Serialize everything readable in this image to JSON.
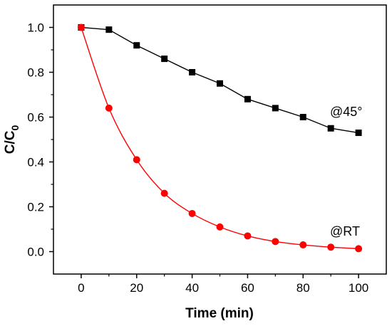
{
  "chart_data": {
    "type": "line",
    "title": "",
    "xlabel": "Time (min)",
    "ylabel": {
      "main": "C/C",
      "sub": "0"
    },
    "xlim": [
      -10,
      110
    ],
    "ylim": [
      -0.1,
      1.1
    ],
    "x_ticks": [
      "0",
      "20",
      "40",
      "60",
      "80",
      "100"
    ],
    "y_ticks": [
      "0.0",
      "0.2",
      "0.4",
      "0.6",
      "0.8",
      "1.0"
    ],
    "grid": false,
    "legend": "none",
    "series": [
      {
        "label": "@45°",
        "color": "#000000",
        "marker": "square",
        "x": [
          0,
          10,
          20,
          30,
          40,
          50,
          60,
          70,
          80,
          90,
          100
        ],
        "y": [
          1.0,
          0.99,
          0.92,
          0.86,
          0.8,
          0.75,
          0.68,
          0.64,
          0.6,
          0.55,
          0.53
        ]
      },
      {
        "label": "@RT",
        "color": "#ff0000",
        "marker": "circle",
        "x": [
          0,
          10,
          20,
          30,
          40,
          50,
          60,
          70,
          80,
          90,
          100
        ],
        "y": [
          1.0,
          0.64,
          0.41,
          0.26,
          0.17,
          0.11,
          0.07,
          0.045,
          0.03,
          0.02,
          0.013
        ]
      }
    ]
  }
}
